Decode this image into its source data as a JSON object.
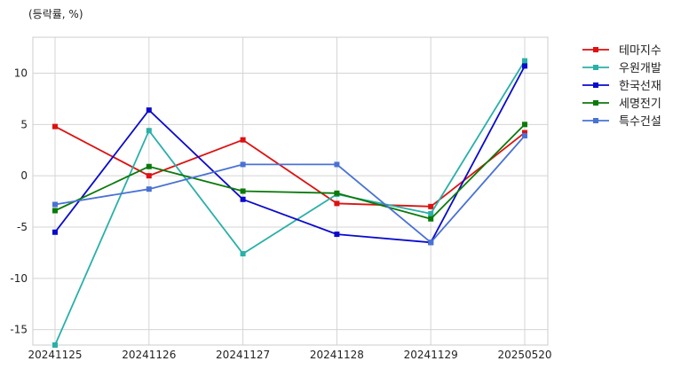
{
  "chart_data": {
    "type": "line",
    "unit_label": "(등락률, %)",
    "categories": [
      "20241125",
      "20241126",
      "20241127",
      "20241128",
      "20241129",
      "20250520"
    ],
    "ylim": [
      -16.5,
      13.5
    ],
    "yticks": [
      10,
      5,
      0,
      -5,
      -10,
      -15
    ],
    "grid": true,
    "legend_position": "outside-right",
    "series": [
      {
        "name": "테마지수",
        "color": "#dd1111",
        "values": [
          4.8,
          0.0,
          3.5,
          -2.7,
          -3.0,
          4.2
        ]
      },
      {
        "name": "우원개발",
        "color": "#2ab0a8",
        "values": [
          -16.5,
          4.4,
          -7.6,
          -1.8,
          -3.7,
          11.2
        ]
      },
      {
        "name": "한국선재",
        "color": "#0a0acc",
        "values": [
          -5.5,
          6.4,
          -2.3,
          -5.7,
          -6.5,
          10.7
        ]
      },
      {
        "name": "세명전기",
        "color": "#0a7a0a",
        "values": [
          -3.4,
          0.9,
          -1.5,
          -1.7,
          -4.2,
          5.0
        ]
      },
      {
        "name": "특수건설",
        "color": "#4a72d4",
        "values": [
          -2.8,
          -1.3,
          1.1,
          1.1,
          -6.5,
          3.9
        ]
      }
    ]
  }
}
